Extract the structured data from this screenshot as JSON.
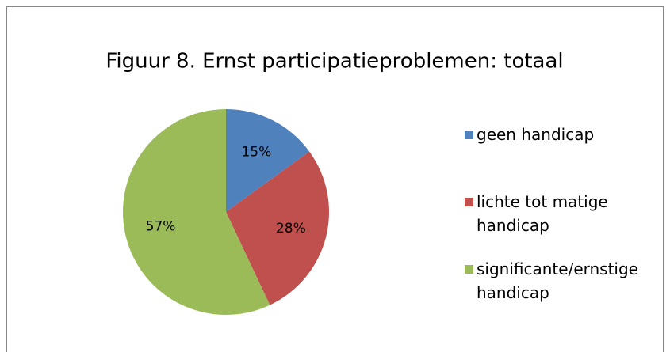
{
  "chart_data": {
    "type": "pie",
    "title": "Figuur 8. Ernst participatieproblemen: totaal",
    "categories": [
      "geen handicap",
      "lichte tot matige handicap",
      "significante/ernstige handicap"
    ],
    "values": [
      15,
      28,
      57
    ],
    "value_labels": [
      "15%",
      "28%",
      "57%"
    ],
    "colors": [
      "#4f81bd",
      "#c0504d",
      "#9bbb59"
    ],
    "legend": "right"
  }
}
